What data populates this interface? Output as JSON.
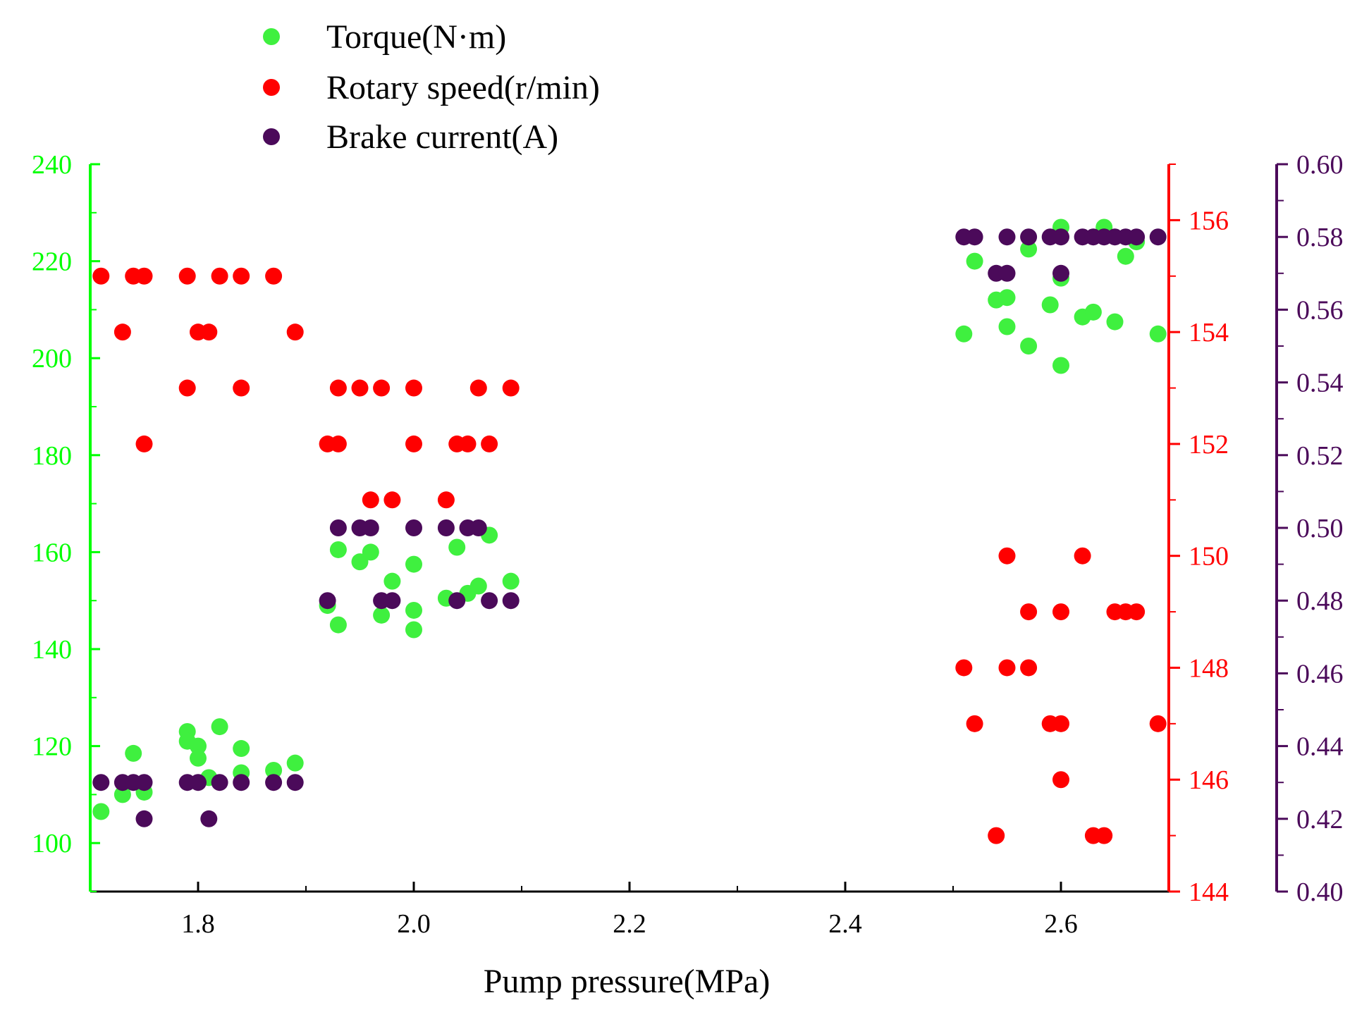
{
  "chart_data": {
    "type": "scatter",
    "title": "",
    "xlabel": "Pump pressure(MPa)",
    "xlim": [
      1.7,
      2.7
    ],
    "x_ticks": [
      1.8,
      2.0,
      2.2,
      2.4,
      2.6
    ],
    "x_tick_labels": [
      "1.8",
      "2.0",
      "2.2",
      "2.4",
      "2.6"
    ],
    "legend_position": "top-left",
    "grid": false,
    "axes": [
      {
        "id": "torque",
        "side": "left",
        "color": "#00ff00",
        "ylim": [
          90,
          240
        ],
        "ticks": [
          100,
          120,
          140,
          160,
          180,
          200,
          220,
          240
        ],
        "tick_labels": [
          "100",
          "120",
          "140",
          "160",
          "180",
          "200",
          "220",
          "240"
        ]
      },
      {
        "id": "speed",
        "side": "right",
        "color": "#ff0000",
        "ylim": [
          144,
          157
        ],
        "ticks": [
          144,
          146,
          148,
          150,
          152,
          154,
          156
        ],
        "tick_labels": [
          "144",
          "146",
          "148",
          "150",
          "152",
          "154",
          "156"
        ]
      },
      {
        "id": "current",
        "side": "right-outer",
        "color": "#4b0a5a",
        "ylim": [
          0.4,
          0.6
        ],
        "ticks": [
          0.4,
          0.42,
          0.44,
          0.46,
          0.48,
          0.5,
          0.52,
          0.54,
          0.56,
          0.58,
          0.6
        ],
        "tick_labels": [
          "0.40",
          "0.42",
          "0.44",
          "0.46",
          "0.48",
          "0.50",
          "0.52",
          "0.54",
          "0.56",
          "0.58",
          "0.60"
        ]
      }
    ],
    "series": [
      {
        "name": "Torque(N·m)",
        "axis": "torque",
        "color": "#3ff03f",
        "points": [
          [
            1.71,
            106.5
          ],
          [
            1.73,
            110
          ],
          [
            1.74,
            118.5
          ],
          [
            1.75,
            110.5
          ],
          [
            1.79,
            123
          ],
          [
            1.79,
            121
          ],
          [
            1.8,
            120
          ],
          [
            1.8,
            117.5
          ],
          [
            1.81,
            113.5
          ],
          [
            1.82,
            124
          ],
          [
            1.84,
            119.5
          ],
          [
            1.84,
            114.5
          ],
          [
            1.87,
            115
          ],
          [
            1.89,
            116.5
          ],
          [
            1.92,
            149
          ],
          [
            1.93,
            145
          ],
          [
            1.93,
            160.5
          ],
          [
            1.95,
            158
          ],
          [
            1.96,
            160
          ],
          [
            1.97,
            147
          ],
          [
            1.98,
            154
          ],
          [
            2.0,
            157.5
          ],
          [
            2.0,
            148
          ],
          [
            2.0,
            144
          ],
          [
            2.03,
            150.5
          ],
          [
            2.04,
            161
          ],
          [
            2.05,
            151.5
          ],
          [
            2.06,
            153
          ],
          [
            2.07,
            163.5
          ],
          [
            2.09,
            154
          ],
          [
            2.51,
            205
          ],
          [
            2.52,
            220
          ],
          [
            2.54,
            212
          ],
          [
            2.55,
            212.5
          ],
          [
            2.55,
            206.5
          ],
          [
            2.57,
            222.5
          ],
          [
            2.57,
            202.5
          ],
          [
            2.59,
            211
          ],
          [
            2.6,
            227
          ],
          [
            2.6,
            216.5
          ],
          [
            2.6,
            198.5
          ],
          [
            2.62,
            208.5
          ],
          [
            2.63,
            209.5
          ],
          [
            2.64,
            227
          ],
          [
            2.65,
            207.5
          ],
          [
            2.66,
            221
          ],
          [
            2.67,
            224
          ],
          [
            2.69,
            205
          ]
        ]
      },
      {
        "name": "Rotary speed(r/min)",
        "axis": "speed",
        "color": "#ff0000",
        "points": [
          [
            1.71,
            155
          ],
          [
            1.73,
            154
          ],
          [
            1.74,
            155
          ],
          [
            1.75,
            155
          ],
          [
            1.75,
            152
          ],
          [
            1.79,
            155
          ],
          [
            1.79,
            153
          ],
          [
            1.8,
            154
          ],
          [
            1.81,
            154
          ],
          [
            1.82,
            155
          ],
          [
            1.84,
            155
          ],
          [
            1.84,
            153
          ],
          [
            1.87,
            155
          ],
          [
            1.89,
            154
          ],
          [
            1.92,
            152
          ],
          [
            1.93,
            152
          ],
          [
            1.93,
            153
          ],
          [
            1.95,
            153
          ],
          [
            1.96,
            151
          ],
          [
            1.97,
            153
          ],
          [
            1.98,
            151
          ],
          [
            2.0,
            153
          ],
          [
            2.0,
            152
          ],
          [
            2.03,
            151
          ],
          [
            2.04,
            152
          ],
          [
            2.05,
            152
          ],
          [
            2.06,
            153
          ],
          [
            2.07,
            152
          ],
          [
            2.09,
            153
          ],
          [
            2.51,
            148
          ],
          [
            2.52,
            147
          ],
          [
            2.54,
            145
          ],
          [
            2.55,
            150
          ],
          [
            2.55,
            148
          ],
          [
            2.57,
            149
          ],
          [
            2.57,
            148
          ],
          [
            2.59,
            147
          ],
          [
            2.6,
            149
          ],
          [
            2.6,
            147
          ],
          [
            2.6,
            146
          ],
          [
            2.62,
            150
          ],
          [
            2.63,
            145
          ],
          [
            2.64,
            145
          ],
          [
            2.65,
            149
          ],
          [
            2.66,
            149
          ],
          [
            2.67,
            149
          ],
          [
            2.69,
            147
          ]
        ]
      },
      {
        "name": "Brake current(A)",
        "axis": "current",
        "color": "#4b0a5a",
        "points": [
          [
            1.71,
            0.43
          ],
          [
            1.73,
            0.43
          ],
          [
            1.74,
            0.43
          ],
          [
            1.75,
            0.43
          ],
          [
            1.75,
            0.42
          ],
          [
            1.79,
            0.43
          ],
          [
            1.8,
            0.43
          ],
          [
            1.81,
            0.42
          ],
          [
            1.82,
            0.43
          ],
          [
            1.84,
            0.43
          ],
          [
            1.87,
            0.43
          ],
          [
            1.89,
            0.43
          ],
          [
            1.92,
            0.48
          ],
          [
            1.93,
            0.5
          ],
          [
            1.95,
            0.5
          ],
          [
            1.96,
            0.5
          ],
          [
            1.97,
            0.48
          ],
          [
            1.98,
            0.48
          ],
          [
            2.0,
            0.5
          ],
          [
            2.03,
            0.5
          ],
          [
            2.04,
            0.48
          ],
          [
            2.05,
            0.5
          ],
          [
            2.06,
            0.5
          ],
          [
            2.07,
            0.48
          ],
          [
            2.09,
            0.48
          ],
          [
            2.51,
            0.58
          ],
          [
            2.52,
            0.58
          ],
          [
            2.54,
            0.57
          ],
          [
            2.55,
            0.57
          ],
          [
            2.55,
            0.58
          ],
          [
            2.57,
            0.58
          ],
          [
            2.59,
            0.58
          ],
          [
            2.6,
            0.58
          ],
          [
            2.6,
            0.57
          ],
          [
            2.62,
            0.58
          ],
          [
            2.63,
            0.58
          ],
          [
            2.64,
            0.58
          ],
          [
            2.65,
            0.58
          ],
          [
            2.66,
            0.58
          ],
          [
            2.67,
            0.58
          ],
          [
            2.69,
            0.58
          ]
        ]
      }
    ]
  }
}
